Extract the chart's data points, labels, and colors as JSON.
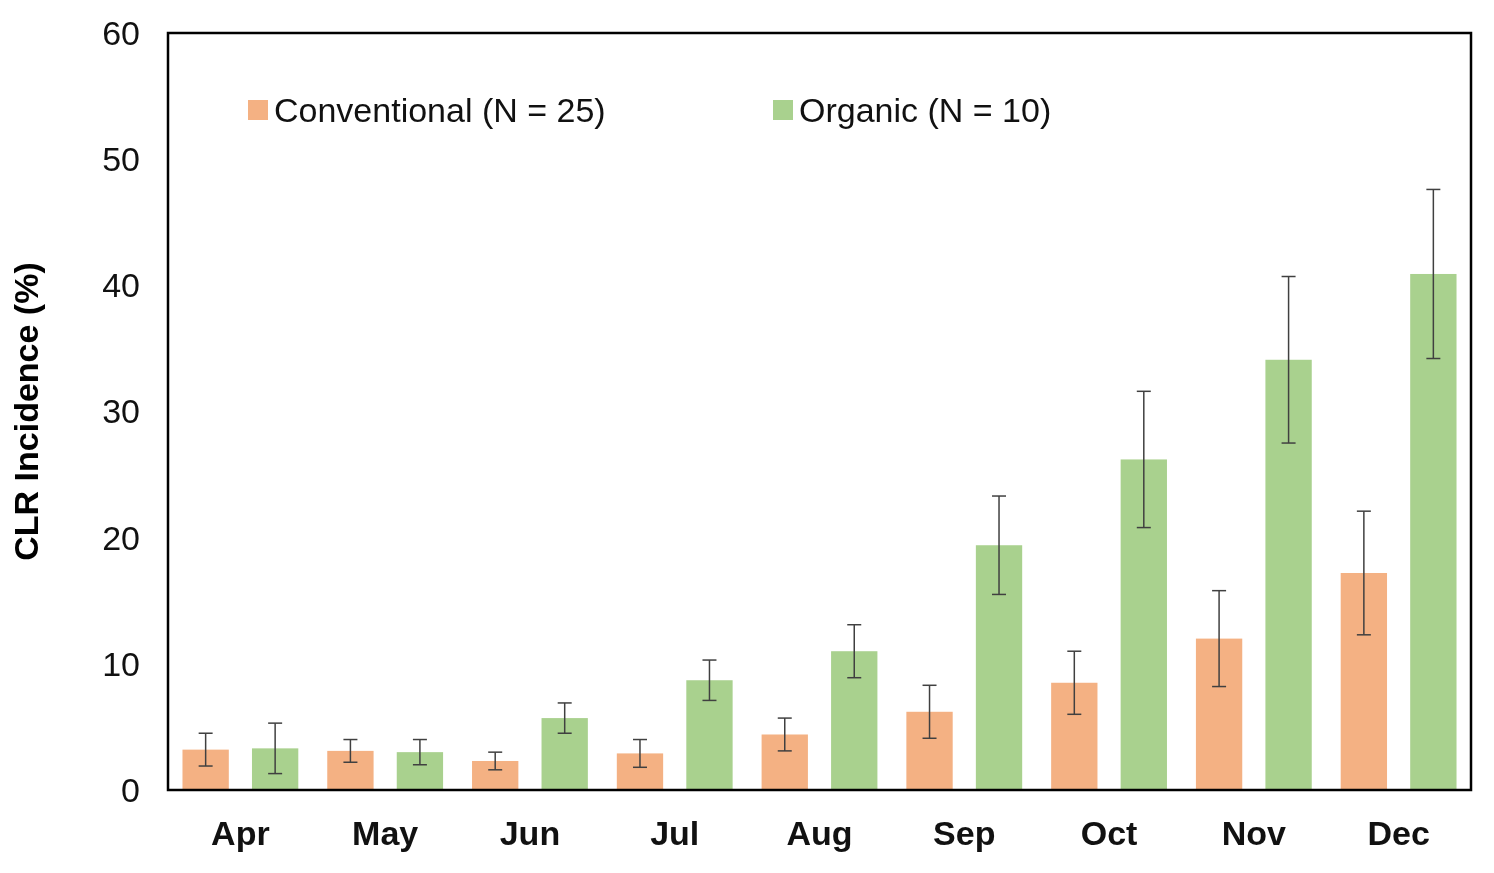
{
  "chart_data": {
    "type": "bar",
    "ylabel": "CLR Incidence (%)",
    "categories": [
      "Apr",
      "May",
      "Jun",
      "Jul",
      "Aug",
      "Sep",
      "Oct",
      "Nov",
      "Dec"
    ],
    "series": [
      {
        "name": "Conventional (N = 25)",
        "color": "#f4b183",
        "values": [
          3.2,
          3.1,
          2.3,
          2.9,
          4.4,
          6.2,
          8.5,
          12.0,
          17.2
        ],
        "errors": [
          1.3,
          0.9,
          0.7,
          1.1,
          1.3,
          2.1,
          2.5,
          3.8,
          4.9
        ]
      },
      {
        "name": "Organic (N = 10)",
        "color": "#a9d18e",
        "values": [
          3.3,
          3.0,
          5.7,
          8.7,
          11.0,
          19.4,
          26.2,
          34.1,
          40.9
        ],
        "errors": [
          2.0,
          1.0,
          1.2,
          1.6,
          2.1,
          3.9,
          5.4,
          6.6,
          6.7
        ]
      }
    ],
    "ylim": [
      0,
      60
    ],
    "yticks": [
      0,
      10,
      20,
      30,
      40,
      50,
      60
    ],
    "grid": false,
    "legend": "top left"
  }
}
